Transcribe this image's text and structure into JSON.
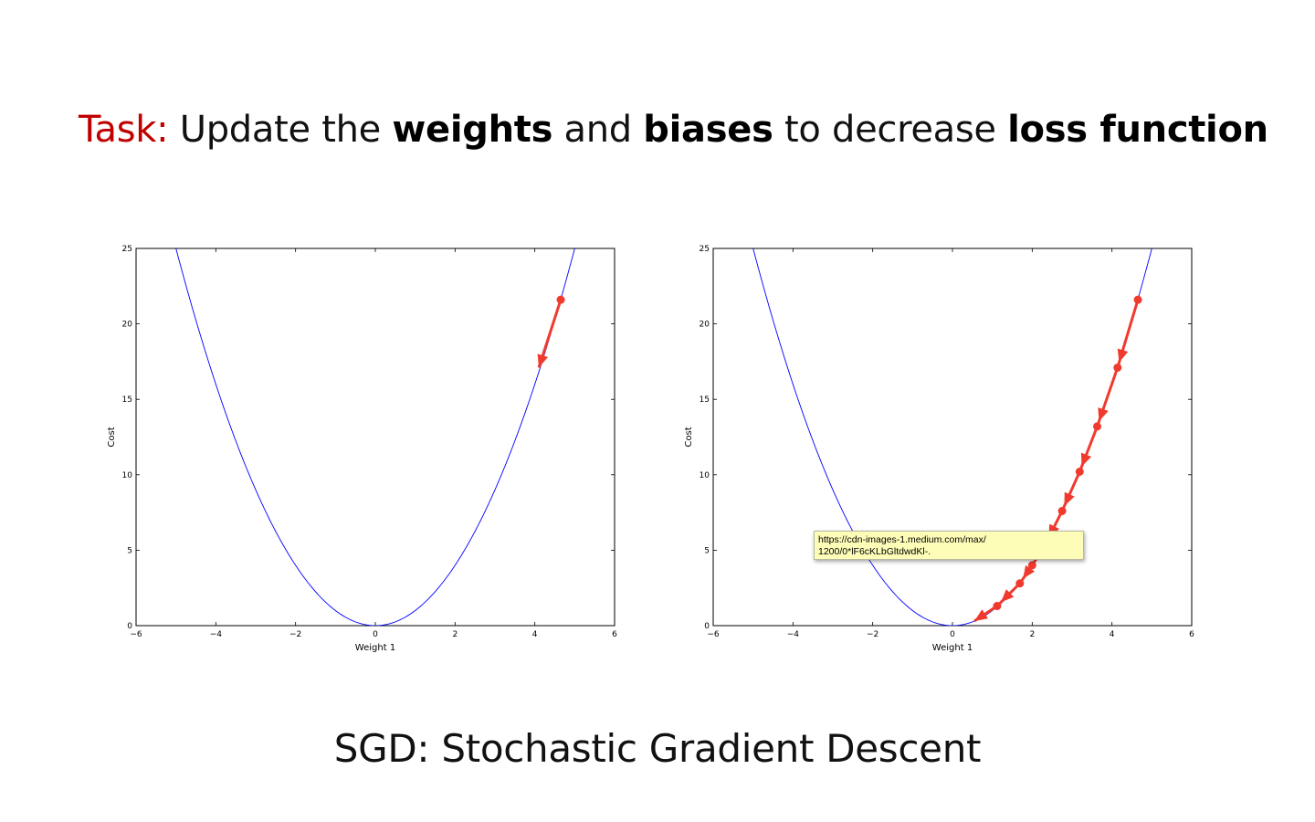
{
  "title": {
    "task_label": "Task:",
    "part1": " Update the ",
    "bold1": "weights",
    "part2": " and ",
    "bold2": "biases",
    "part3": " to decrease ",
    "bold3": "loss function"
  },
  "subtitle": "SGD: Stochastic Gradient Descent",
  "tooltip": {
    "line1": "https://cdn-images-1.medium.com/max/",
    "line2": "1200/0*lF6cKLbGltdwdKl-."
  },
  "colors": {
    "curve": "#0000ff",
    "path": "#f03a2e",
    "title_accent": "#c00000"
  },
  "chart_data": [
    {
      "type": "line",
      "xlabel": "Weight 1",
      "ylabel": "Cost",
      "xlim": [
        -6,
        6
      ],
      "ylim": [
        0,
        25
      ],
      "xticks": [
        -6,
        -4,
        -2,
        0,
        2,
        4,
        6
      ],
      "yticks": [
        0,
        5,
        10,
        15,
        20,
        25
      ],
      "series": [
        {
          "kind": "curve",
          "function": "y = x^2",
          "x_range": [
            -5,
            5
          ]
        },
        {
          "kind": "descent_path",
          "points": [
            [
              4.65,
              21.6
            ],
            [
              4.1,
              17.1
            ]
          ],
          "arrow_at_end": true
        }
      ]
    },
    {
      "type": "line",
      "xlabel": "Weight 1",
      "ylabel": "Cost",
      "xlim": [
        -6,
        6
      ],
      "ylim": [
        0,
        25
      ],
      "xticks": [
        -6,
        -4,
        -2,
        0,
        2,
        4,
        6
      ],
      "yticks": [
        0,
        5,
        10,
        15,
        20,
        25
      ],
      "series": [
        {
          "kind": "curve",
          "function": "y = x^2",
          "x_range": [
            -5,
            5
          ]
        },
        {
          "kind": "descent_path",
          "points": [
            [
              4.65,
              21.6
            ],
            [
              4.14,
              17.1
            ],
            [
              3.63,
              13.2
            ],
            [
              3.19,
              10.2
            ],
            [
              2.75,
              7.6
            ],
            [
              2.35,
              5.5
            ],
            [
              2.0,
              4.0
            ],
            [
              1.69,
              2.8
            ],
            [
              1.12,
              1.3
            ],
            [
              0.55,
              0.3
            ]
          ],
          "arrow_at_end": true
        }
      ]
    }
  ]
}
